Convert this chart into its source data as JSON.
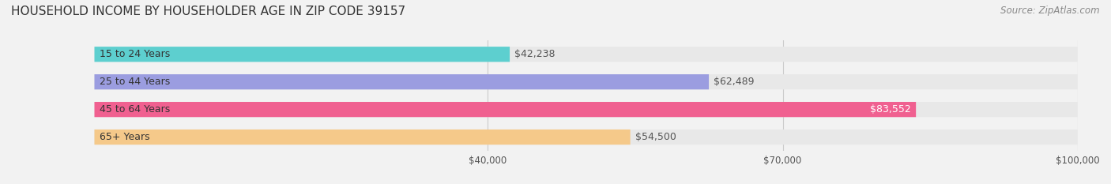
{
  "title": "HOUSEHOLD INCOME BY HOUSEHOLDER AGE IN ZIP CODE 39157",
  "source": "Source: ZipAtlas.com",
  "categories": [
    "15 to 24 Years",
    "25 to 44 Years",
    "45 to 64 Years",
    "65+ Years"
  ],
  "values": [
    42238,
    62489,
    83552,
    54500
  ],
  "bar_colors": [
    "#5dcfcf",
    "#9b9de0",
    "#f06090",
    "#f5c98a"
  ],
  "bar_labels": [
    "$42,238",
    "$62,489",
    "$83,552",
    "$54,500"
  ],
  "label_colors": [
    "#555555",
    "#555555",
    "#ffffff",
    "#555555"
  ],
  "xlim": [
    0,
    100000
  ],
  "xticks": [
    40000,
    70000,
    100000
  ],
  "xtick_labels": [
    "$40,000",
    "$70,000",
    "$100,000"
  ],
  "background_color": "#f2f2f2",
  "bar_bg_color": "#e8e8e8",
  "title_fontsize": 11,
  "source_fontsize": 8.5,
  "label_fontsize": 9,
  "category_fontsize": 9,
  "tick_fontsize": 8.5
}
